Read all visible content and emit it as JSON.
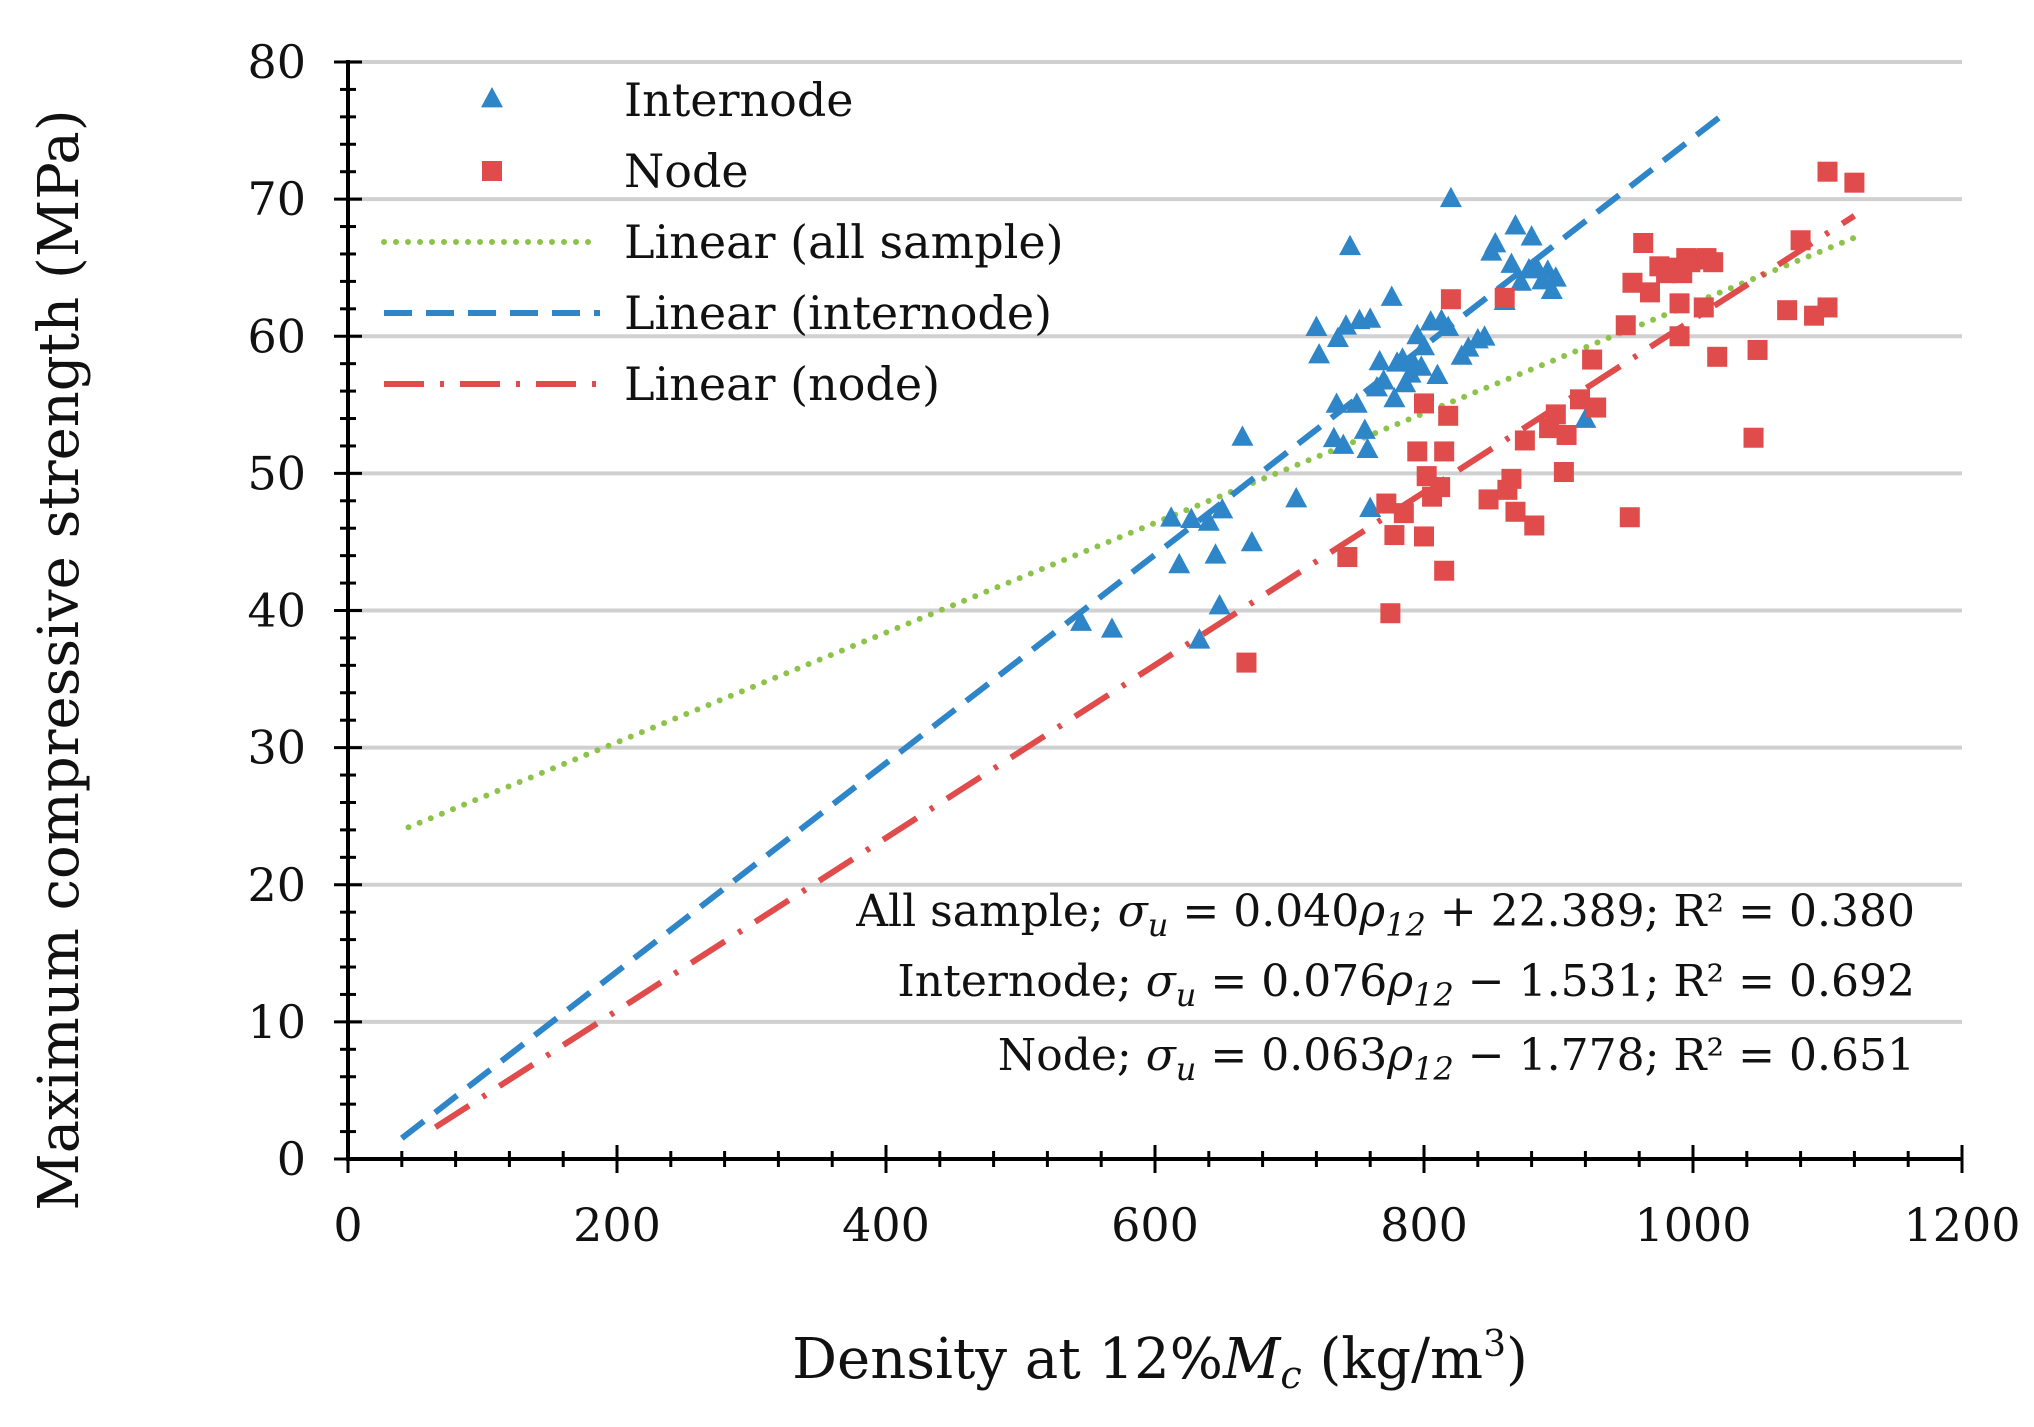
{
  "chart_data": {
    "type": "scatter",
    "xlabel": "Density at 12%Mc (kg/m3)",
    "xlabel_parts": {
      "prefix": "Density at 12%",
      "M": "M",
      "c": "c",
      "unit_open": " (kg/m",
      "sup": "3",
      "unit_close": ")"
    },
    "ylabel": "Maximum compressive strength (MPa)",
    "xlim": [
      0,
      1200
    ],
    "ylim": [
      0,
      80
    ],
    "x_ticks": [
      0,
      200,
      400,
      600,
      800,
      1000,
      1200
    ],
    "x_tick_labels": [
      "0",
      "200",
      "400",
      "600",
      "800",
      "1000",
      "1200"
    ],
    "y_ticks": [
      0,
      10,
      20,
      30,
      40,
      50,
      60,
      70,
      80
    ],
    "y_tick_labels": [
      "0",
      "10",
      "20",
      "30",
      "40",
      "50",
      "60",
      "70",
      "80"
    ],
    "grid": "horizontal",
    "legend_position": "top-left",
    "series": [
      {
        "name": "Internode",
        "marker": "triangle",
        "color": "#2E86C8",
        "points": [
          [
            545,
            39.2
          ],
          [
            568,
            38.7
          ],
          [
            612,
            46.8
          ],
          [
            618,
            43.4
          ],
          [
            627,
            46.7
          ],
          [
            633,
            37.9
          ],
          [
            640,
            46.5
          ],
          [
            645,
            44.1
          ],
          [
            648,
            40.4
          ],
          [
            650,
            47.4
          ],
          [
            665,
            52.7
          ],
          [
            672,
            45.0
          ],
          [
            705,
            48.2
          ],
          [
            720,
            60.7
          ],
          [
            722,
            58.7
          ],
          [
            733,
            52.6
          ],
          [
            735,
            55.1
          ],
          [
            736,
            59.9
          ],
          [
            740,
            52.1
          ],
          [
            742,
            60.8
          ],
          [
            745,
            66.6
          ],
          [
            750,
            55.1
          ],
          [
            752,
            61.2
          ],
          [
            756,
            53.2
          ],
          [
            758,
            51.8
          ],
          [
            760,
            61.3
          ],
          [
            760,
            47.5
          ],
          [
            765,
            56.3
          ],
          [
            767,
            58.2
          ],
          [
            770,
            56.8
          ],
          [
            776,
            62.9
          ],
          [
            778,
            55.5
          ],
          [
            780,
            58.1
          ],
          [
            784,
            58.4
          ],
          [
            786,
            56.6
          ],
          [
            790,
            57.3
          ],
          [
            792,
            58.1
          ],
          [
            795,
            60.1
          ],
          [
            798,
            57.8
          ],
          [
            800,
            59.3
          ],
          [
            805,
            61.1
          ],
          [
            810,
            57.2
          ],
          [
            813,
            61.2
          ],
          [
            818,
            60.7
          ],
          [
            820,
            70.1
          ],
          [
            828,
            58.6
          ],
          [
            833,
            59.2
          ],
          [
            840,
            59.8
          ],
          [
            845,
            60.0
          ],
          [
            850,
            66.2
          ],
          [
            853,
            66.8
          ],
          [
            860,
            62.6
          ],
          [
            865,
            65.3
          ],
          [
            868,
            68.1
          ],
          [
            872,
            64.0
          ],
          [
            878,
            64.9
          ],
          [
            880,
            67.3
          ],
          [
            884,
            65.0
          ],
          [
            888,
            64.1
          ],
          [
            892,
            64.8
          ],
          [
            895,
            63.4
          ],
          [
            898,
            64.3
          ],
          [
            920,
            54.0
          ]
        ]
      },
      {
        "name": "Node",
        "marker": "square",
        "color": "#E04B4B",
        "points": [
          [
            668,
            36.2
          ],
          [
            743,
            43.9
          ],
          [
            772,
            47.8
          ],
          [
            775,
            39.8
          ],
          [
            778,
            45.5
          ],
          [
            785,
            47.1
          ],
          [
            795,
            51.6
          ],
          [
            800,
            45.4
          ],
          [
            800,
            55.1
          ],
          [
            802,
            49.8
          ],
          [
            806,
            48.3
          ],
          [
            812,
            49.0
          ],
          [
            815,
            42.9
          ],
          [
            815,
            51.6
          ],
          [
            818,
            54.2
          ],
          [
            820,
            62.7
          ],
          [
            848,
            48.1
          ],
          [
            860,
            62.8
          ],
          [
            862,
            48.8
          ],
          [
            865,
            49.6
          ],
          [
            868,
            47.2
          ],
          [
            875,
            52.4
          ],
          [
            882,
            46.2
          ],
          [
            893,
            53.3
          ],
          [
            898,
            54.3
          ],
          [
            904,
            50.1
          ],
          [
            906,
            52.8
          ],
          [
            916,
            55.4
          ],
          [
            925,
            58.3
          ],
          [
            928,
            54.8
          ],
          [
            950,
            60.8
          ],
          [
            953,
            46.8
          ],
          [
            955,
            63.9
          ],
          [
            963,
            66.8
          ],
          [
            968,
            63.2
          ],
          [
            975,
            65.1
          ],
          [
            980,
            64.6
          ],
          [
            988,
            65.0
          ],
          [
            990,
            62.4
          ],
          [
            990,
            60.0
          ],
          [
            992,
            64.6
          ],
          [
            995,
            65.7
          ],
          [
            998,
            65.4
          ],
          [
            1003,
            65.6
          ],
          [
            1008,
            62.1
          ],
          [
            1010,
            65.7
          ],
          [
            1015,
            65.4
          ],
          [
            1018,
            58.5
          ],
          [
            1045,
            52.6
          ],
          [
            1048,
            59.0
          ],
          [
            1070,
            61.9
          ],
          [
            1080,
            67.0
          ],
          [
            1090,
            61.5
          ],
          [
            1100,
            62.1
          ],
          [
            1100,
            72.0
          ],
          [
            1120,
            71.2
          ]
        ]
      }
    ],
    "trendlines": [
      {
        "name": "Linear (all sample)",
        "style": "dotted",
        "color": "#8DC34A",
        "slope": 0.04,
        "intercept": 22.389,
        "x_range": [
          45,
          1120
        ]
      },
      {
        "name": "Linear (internode)",
        "style": "dashed",
        "color": "#2E86C8",
        "slope": 0.076,
        "intercept": -1.531,
        "x_range": [
          40,
          1025
        ]
      },
      {
        "name": "Linear (node)",
        "style": "dash-dot",
        "color": "#E04B4B",
        "slope": 0.063,
        "intercept": -1.778,
        "x_range": [
          65,
          1120
        ]
      }
    ],
    "legend": [
      {
        "label": "Internode",
        "kind": "triangle",
        "color": "#2E86C8"
      },
      {
        "label": "Node",
        "kind": "square",
        "color": "#E04B4B"
      },
      {
        "label": "Linear (all sample)",
        "kind": "dotted",
        "color": "#8DC34A"
      },
      {
        "label": "Linear (internode)",
        "kind": "dashed",
        "color": "#2E86C8"
      },
      {
        "label": "Linear (node)",
        "kind": "dash-dot",
        "color": "#E04B4B"
      }
    ],
    "equations": [
      {
        "lead": "All sample; ",
        "sigma": "σ",
        "u": "u",
        "mid": " = 0.040",
        "rho": "ρ",
        "sub12": "12",
        "tail": " + 22.389; R² = 0.380"
      },
      {
        "lead": "Internode; ",
        "sigma": "σ",
        "u": "u",
        "mid": " = 0.076",
        "rho": "ρ",
        "sub12": "12",
        "tail": " − 1.531; R² = 0.692"
      },
      {
        "lead": "Node; ",
        "sigma": "σ",
        "u": "u",
        "mid": " = 0.063",
        "rho": "ρ",
        "sub12": "12",
        "tail": " − 1.778; R² = 0.651"
      }
    ]
  }
}
